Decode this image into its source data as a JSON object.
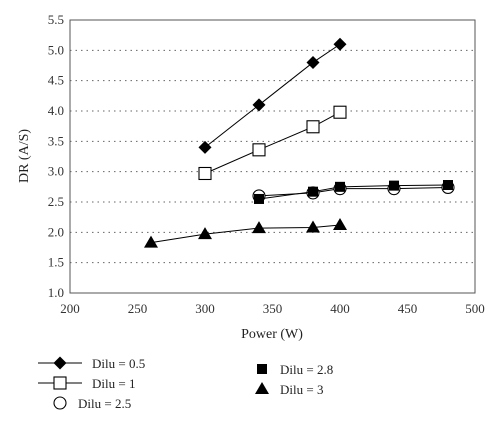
{
  "chart_data": {
    "type": "line",
    "xlabel": "Power (W)",
    "ylabel": "DR (A/S)",
    "xlim": [
      200,
      500
    ],
    "ylim": [
      1.0,
      5.5
    ],
    "xticks": [
      200,
      250,
      300,
      350,
      400,
      450,
      500
    ],
    "yticks": [
      1.0,
      1.5,
      2.0,
      2.5,
      3.0,
      3.5,
      4.0,
      4.5,
      5.0,
      5.5
    ],
    "grid": "horizontal dotted",
    "legend_position": "bottom-left",
    "series": [
      {
        "name": "Dilu = 0.5",
        "marker": "diamond-filled",
        "x": [
          300,
          340,
          380,
          400
        ],
        "y": [
          3.4,
          4.1,
          4.8,
          5.1
        ]
      },
      {
        "name": "Dilu = 1",
        "marker": "square-open",
        "x": [
          300,
          340,
          380,
          400
        ],
        "y": [
          2.97,
          3.36,
          3.74,
          3.98
        ]
      },
      {
        "name": "Dilu = 2.5",
        "marker": "circle-open",
        "x": [
          340,
          380,
          400,
          440,
          480
        ],
        "y": [
          2.6,
          2.65,
          2.72,
          2.72,
          2.74
        ]
      },
      {
        "name": "Dilu = 2.8",
        "marker": "square-filled",
        "x": [
          340,
          380,
          400,
          440,
          480
        ],
        "y": [
          2.55,
          2.67,
          2.75,
          2.77,
          2.78
        ]
      },
      {
        "name": "Dilu = 3",
        "marker": "triangle-filled",
        "x": [
          260,
          300,
          340,
          380,
          400
        ],
        "y": [
          1.83,
          1.97,
          2.07,
          2.08,
          2.12
        ]
      }
    ]
  }
}
